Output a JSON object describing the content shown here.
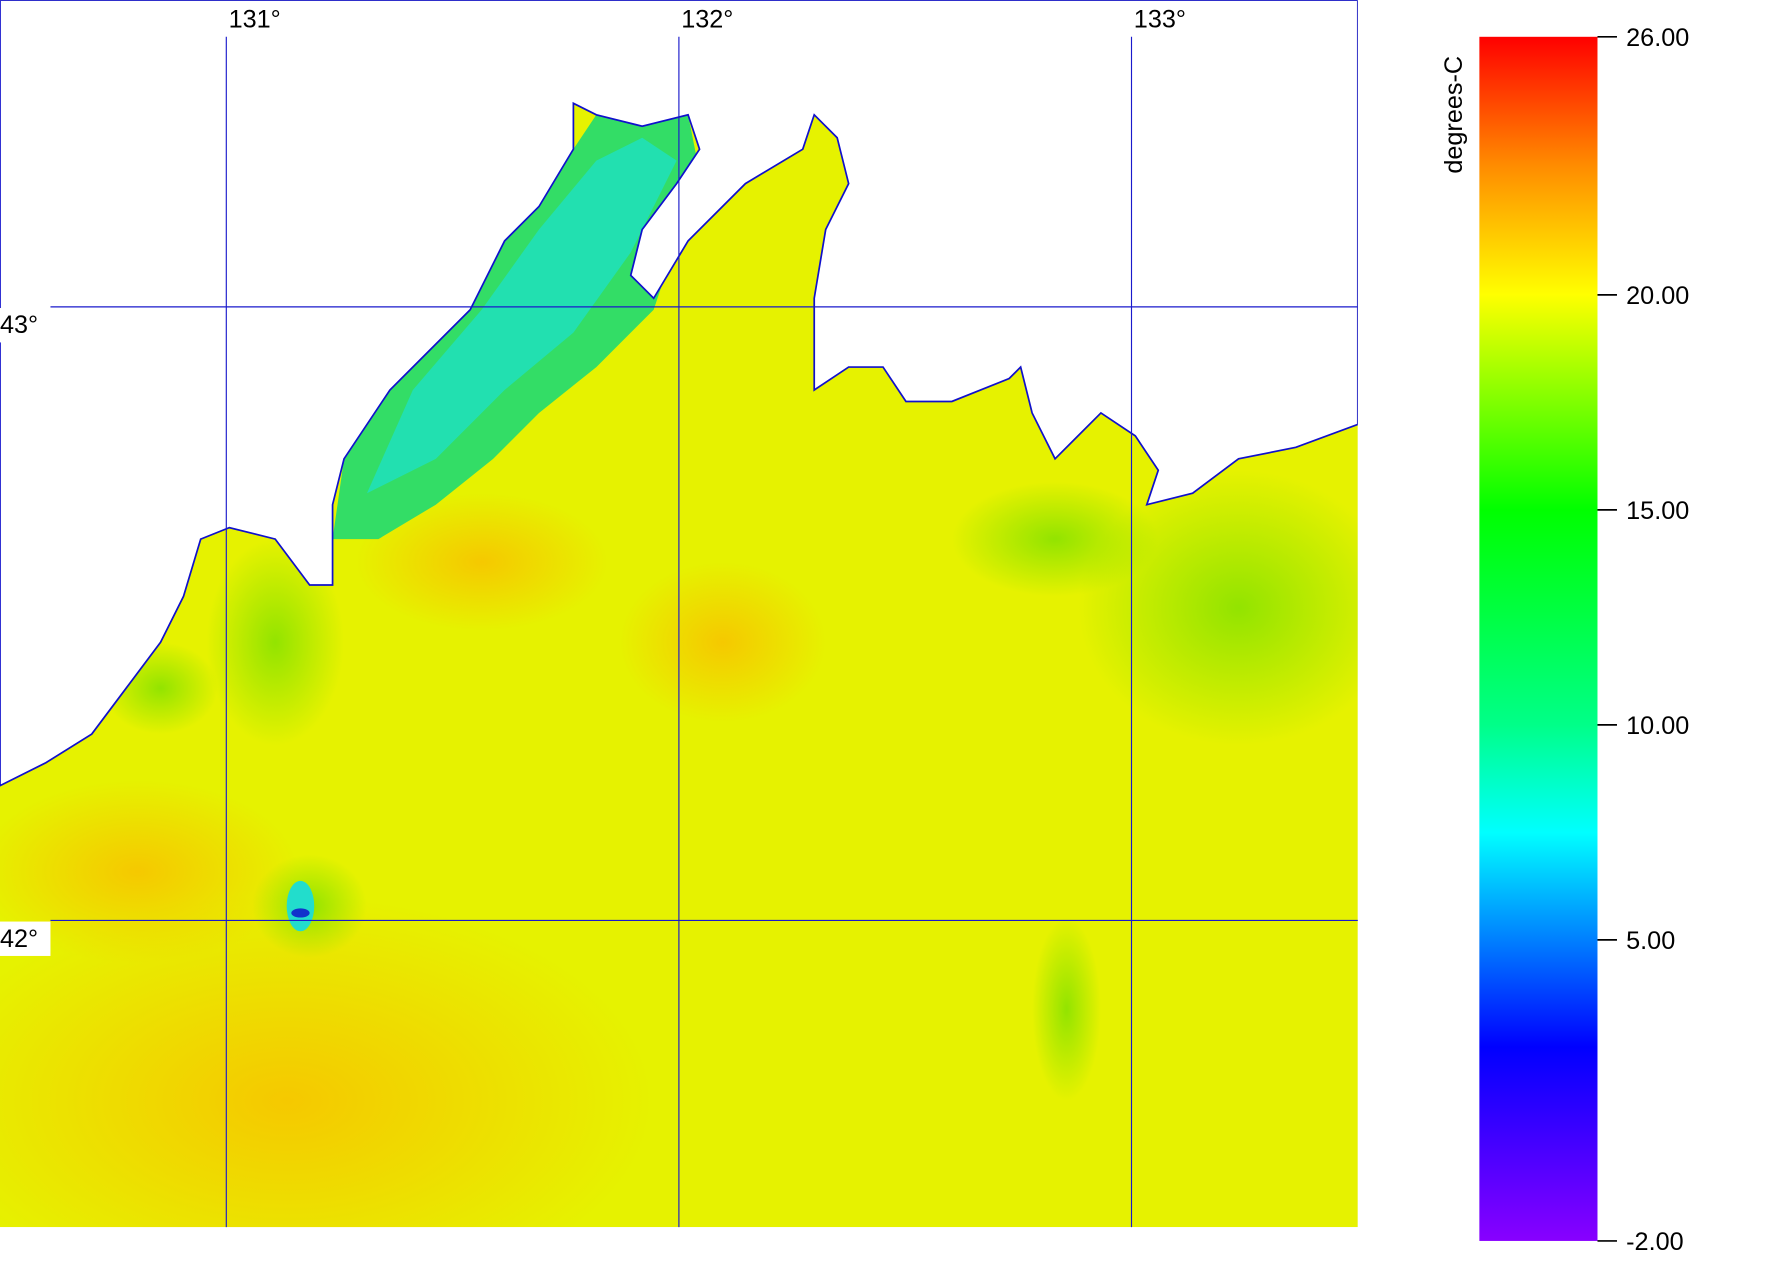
{
  "map": {
    "lonlim": [
      130.5,
      133.5
    ],
    "latlim": [
      41.5,
      43.5
    ],
    "lon_ticks": [
      {
        "value": 131,
        "label": "131°"
      },
      {
        "value": 132,
        "label": "132°"
      },
      {
        "value": 133,
        "label": "133°"
      }
    ],
    "lat_ticks": [
      {
        "value": 43,
        "label": "43°"
      },
      {
        "value": 42,
        "label": "42°"
      }
    ],
    "grid_color": "#1a1acc",
    "colorbar": {
      "label": "degrees-C",
      "lim": [
        -2,
        26
      ],
      "ticks": [
        {
          "value": 26,
          "label": "26.00"
        },
        {
          "value": 20,
          "label": "20.00"
        },
        {
          "value": 15,
          "label": "15.00"
        },
        {
          "value": 10,
          "label": "10.00"
        },
        {
          "value": 5,
          "label": "5.00"
        },
        {
          "value": -2,
          "label": "-2.00"
        }
      ]
    }
  }
}
